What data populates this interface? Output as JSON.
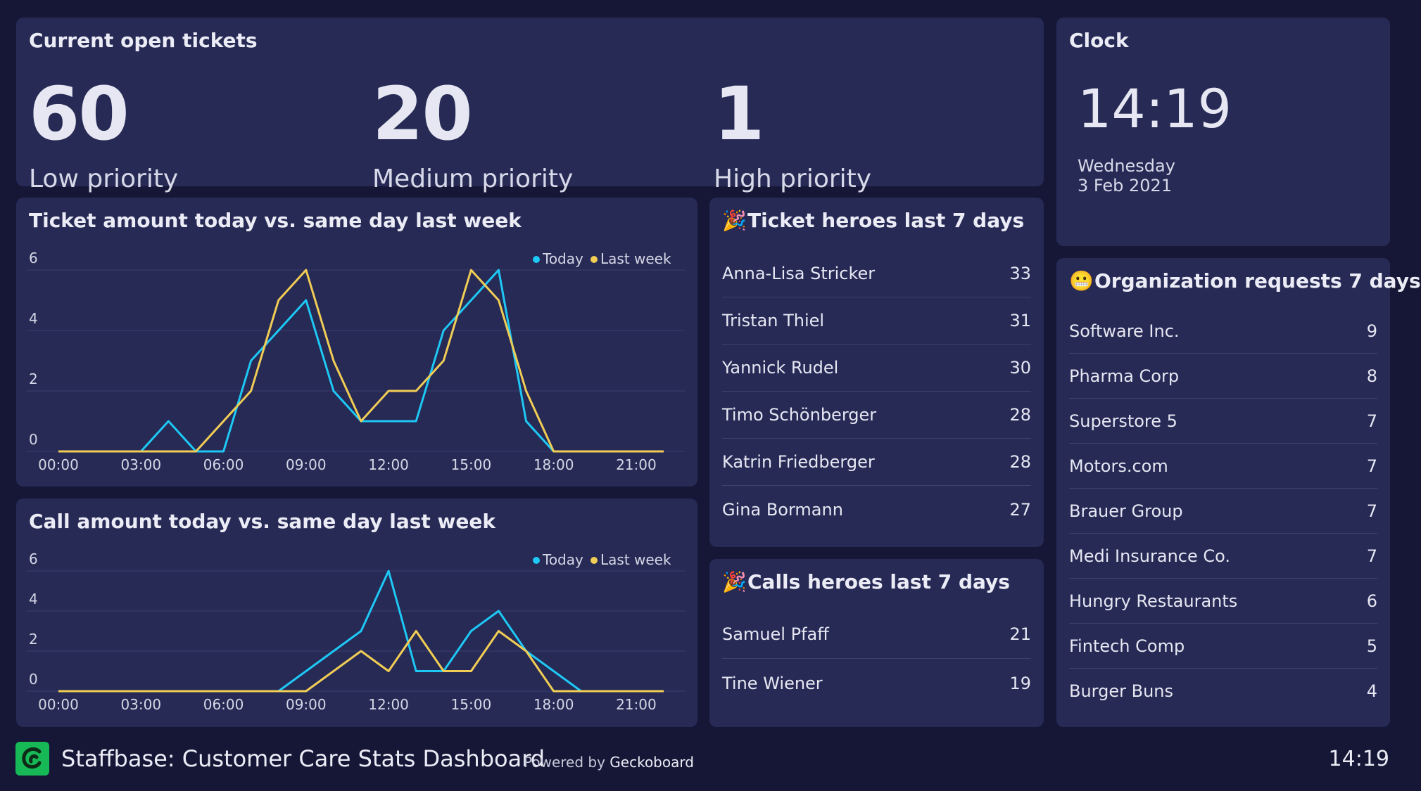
{
  "tickets": {
    "title": "Current open tickets",
    "stats": [
      {
        "value": "60",
        "label": "Low priority"
      },
      {
        "value": "20",
        "label": "Medium priority"
      },
      {
        "value": "1",
        "label": "High priority"
      }
    ]
  },
  "clock": {
    "title": "Clock",
    "time": "14:19",
    "day": "Wednesday",
    "date": "3 Feb 2021"
  },
  "ticket_heroes": {
    "title": "Ticket heroes last 7 days",
    "emoji": "🎉",
    "rows": [
      {
        "name": "Anna-Lisa Stricker",
        "count": "33"
      },
      {
        "name": "Tristan Thiel",
        "count": "31"
      },
      {
        "name": "Yannick Rudel",
        "count": "30"
      },
      {
        "name": "Timo Schönberger",
        "count": "28"
      },
      {
        "name": "Katrin Friedberger",
        "count": "28"
      },
      {
        "name": "Gina Bormann",
        "count": "27"
      }
    ]
  },
  "calls_heroes": {
    "title": "Calls heroes last 7 days",
    "emoji": "🎉",
    "rows": [
      {
        "name": "Samuel Pfaff",
        "count": "21"
      },
      {
        "name": "Tine Wiener",
        "count": "19"
      }
    ]
  },
  "org_requests": {
    "title": "Organization requests 7 days",
    "emoji": "😬",
    "rows": [
      {
        "name": "Software Inc.",
        "count": "9"
      },
      {
        "name": "Pharma Corp",
        "count": "8"
      },
      {
        "name": "Superstore 5",
        "count": "7"
      },
      {
        "name": "Motors.com",
        "count": "7"
      },
      {
        "name": "Brauer Group",
        "count": "7"
      },
      {
        "name": "Medi Insurance Co.",
        "count": "7"
      },
      {
        "name": "Hungry Restaurants",
        "count": "6"
      },
      {
        "name": "Fintech Comp",
        "count": "5"
      },
      {
        "name": "Burger Buns",
        "count": "4"
      }
    ]
  },
  "footer": {
    "title": "Staffbase: Customer Care Stats Dashboard",
    "powered_prefix": "Powered by",
    "powered_brand": "Geckoboard",
    "time": "14:19"
  },
  "colors": {
    "today": "#1ec8f5",
    "last_week": "#f1cd55",
    "background": "#161636",
    "panel": "#262a55",
    "logo": "#17b856"
  },
  "chart_data": [
    {
      "type": "line",
      "title": "Ticket amount today vs. same day last week",
      "x": [
        "00:00",
        "01:00",
        "02:00",
        "03:00",
        "04:00",
        "05:00",
        "06:00",
        "07:00",
        "08:00",
        "09:00",
        "10:00",
        "11:00",
        "12:00",
        "13:00",
        "14:00",
        "15:00",
        "16:00",
        "17:00",
        "18:00",
        "19:00",
        "20:00",
        "21:00",
        "22:00"
      ],
      "xticks": [
        "00:00",
        "03:00",
        "06:00",
        "09:00",
        "12:00",
        "15:00",
        "18:00",
        "21:00"
      ],
      "yticks": [
        0,
        2,
        4,
        6
      ],
      "ylim": [
        0,
        6
      ],
      "legend_position": "top-right",
      "series": [
        {
          "name": "Today",
          "values": [
            0,
            0,
            0,
            0,
            1,
            0,
            0,
            3,
            4,
            5,
            2,
            1,
            1,
            1,
            4,
            5,
            6,
            1,
            0,
            0,
            0,
            0,
            0
          ]
        },
        {
          "name": "Last week",
          "values": [
            0,
            0,
            0,
            0,
            0,
            0,
            1,
            2,
            5,
            6,
            3,
            1,
            2,
            2,
            3,
            6,
            5,
            2,
            0,
            0,
            0,
            0,
            0
          ]
        }
      ]
    },
    {
      "type": "line",
      "title": "Call amount today vs. same day last week",
      "x": [
        "00:00",
        "01:00",
        "02:00",
        "03:00",
        "04:00",
        "05:00",
        "06:00",
        "07:00",
        "08:00",
        "09:00",
        "10:00",
        "11:00",
        "12:00",
        "13:00",
        "14:00",
        "15:00",
        "16:00",
        "17:00",
        "18:00",
        "19:00",
        "20:00",
        "21:00",
        "22:00"
      ],
      "xticks": [
        "00:00",
        "03:00",
        "06:00",
        "09:00",
        "12:00",
        "15:00",
        "18:00",
        "21:00"
      ],
      "yticks": [
        0,
        2,
        4,
        6
      ],
      "ylim": [
        0,
        6
      ],
      "legend_position": "top-right",
      "series": [
        {
          "name": "Today",
          "values": [
            0,
            0,
            0,
            0,
            0,
            0,
            0,
            0,
            0,
            1,
            2,
            3,
            6,
            1,
            1,
            3,
            4,
            2,
            1,
            0,
            0,
            0,
            0
          ]
        },
        {
          "name": "Last week",
          "values": [
            0,
            0,
            0,
            0,
            0,
            0,
            0,
            0,
            0,
            0,
            1,
            2,
            1,
            3,
            1,
            1,
            3,
            2,
            0,
            0,
            0,
            0,
            0
          ]
        }
      ]
    }
  ]
}
